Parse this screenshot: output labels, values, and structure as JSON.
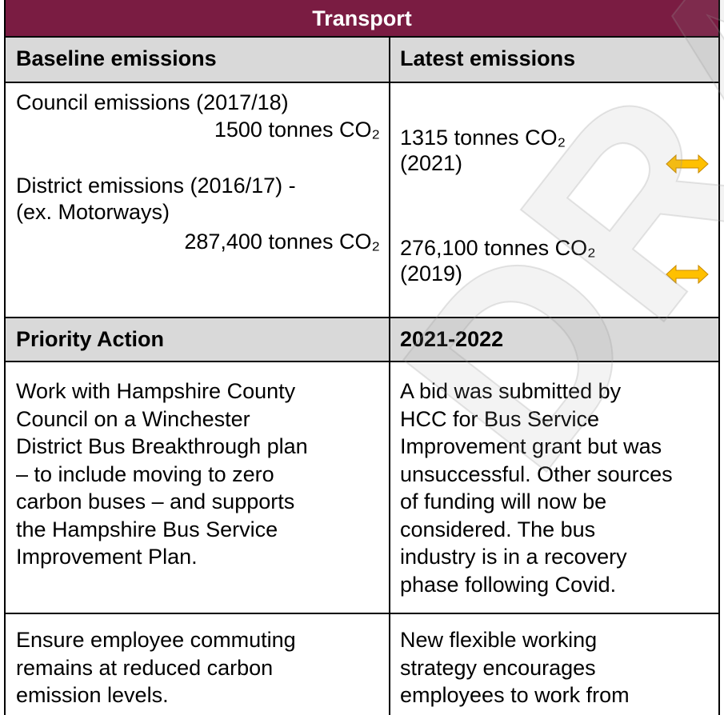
{
  "header": {
    "title": "Transport"
  },
  "table": {
    "header": [
      "Baseline emissions",
      "Latest emissions"
    ],
    "baseline": {
      "council_label": "Council emissions (2017/18)",
      "council_value": "1500 tonnes CO₂",
      "district_label": [
        "District emissions (2016/17) -",
        "(ex. Motorways)"
      ],
      "district_value": "287,400 tonnes CO₂"
    },
    "latest": {
      "council": [
        "1315 tonnes CO₂",
        "(2021)"
      ],
      "district": [
        "276,100 tonnes CO₂",
        "(2019)"
      ]
    },
    "action_header": [
      "Priority Action",
      "2021-2022"
    ],
    "rows": [
      [
        [
          "Work with Hampshire County",
          "Council on a Winchester",
          "District Bus Breakthrough plan",
          "– to include moving to zero",
          "carbon buses – and supports",
          "the Hampshire Bus Service",
          "Improvement Plan."
        ],
        [
          "A bid was submitted by",
          "HCC for Bus Service",
          "Improvement grant but was",
          "unsuccessful. Other sources",
          "of funding will now be",
          "considered. The bus",
          "industry is in a recovery",
          "phase following Covid."
        ]
      ],
      [
        [
          "Ensure employee commuting",
          "remains at reduced carbon",
          "emission levels."
        ],
        [
          "New flexible working",
          "strategy encourages",
          "employees to work from"
        ]
      ]
    ]
  },
  "watermark": "DRAFT"
}
